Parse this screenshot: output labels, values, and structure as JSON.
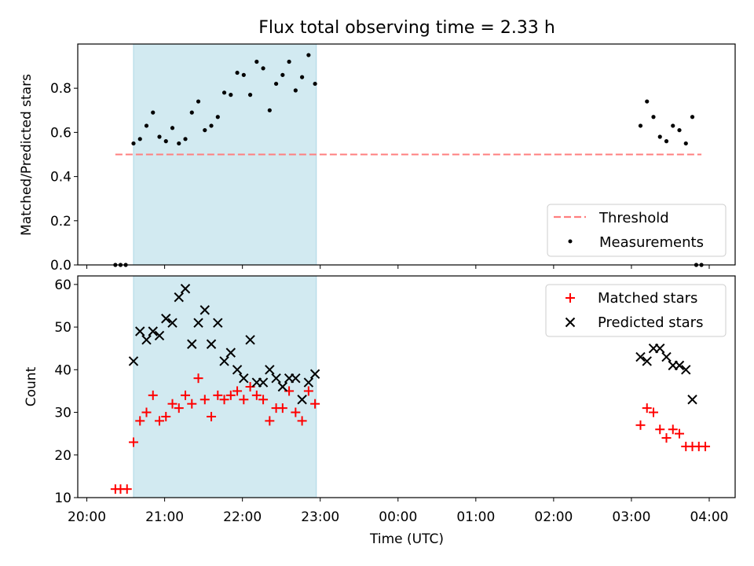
{
  "colors": {
    "shade": "#add8e6",
    "threshold": "#ff7f7f",
    "measurement": "#000000",
    "matched": "#ff0000",
    "predicted": "#000000"
  },
  "chart_data": [
    {
      "type": "scatter",
      "title": "Flux total observing time = 2.33 h",
      "xlabel": "",
      "ylabel": "Matched/Predicted stars",
      "xlim": [
        "19:53",
        "04:20"
      ],
      "ylim": [
        0,
        1.0
      ],
      "yticks": [
        "0.0",
        "0.2",
        "0.4",
        "0.6",
        "0.8"
      ],
      "shaded_span": [
        "20:36",
        "22:57"
      ],
      "legend_position": "lower-right",
      "legend": [
        {
          "label": "Threshold",
          "style": "dashed-line"
        },
        {
          "label": "Measurements",
          "style": "dot"
        }
      ],
      "threshold": {
        "y": 0.5,
        "x_start": "20:22",
        "x_end": "03:54"
      },
      "series": [
        {
          "name": "Measurements",
          "marker": "dot",
          "points": [
            [
              "20:22",
              0.0
            ],
            [
              "20:26",
              0.0
            ],
            [
              "20:30",
              0.0
            ],
            [
              "20:36",
              0.55
            ],
            [
              "20:41",
              0.57
            ],
            [
              "20:46",
              0.63
            ],
            [
              "20:51",
              0.69
            ],
            [
              "20:56",
              0.58
            ],
            [
              "21:01",
              0.56
            ],
            [
              "21:06",
              0.62
            ],
            [
              "21:11",
              0.55
            ],
            [
              "21:16",
              0.57
            ],
            [
              "21:21",
              0.69
            ],
            [
              "21:26",
              0.74
            ],
            [
              "21:31",
              0.61
            ],
            [
              "21:36",
              0.63
            ],
            [
              "21:41",
              0.67
            ],
            [
              "21:46",
              0.78
            ],
            [
              "21:51",
              0.77
            ],
            [
              "21:56",
              0.87
            ],
            [
              "22:01",
              0.86
            ],
            [
              "22:06",
              0.77
            ],
            [
              "22:11",
              0.92
            ],
            [
              "22:16",
              0.89
            ],
            [
              "22:21",
              0.7
            ],
            [
              "22:26",
              0.82
            ],
            [
              "22:31",
              0.86
            ],
            [
              "22:36",
              0.92
            ],
            [
              "22:41",
              0.79
            ],
            [
              "22:46",
              0.85
            ],
            [
              "22:51",
              0.95
            ],
            [
              "22:56",
              0.82
            ],
            [
              "03:07",
              0.63
            ],
            [
              "03:12",
              0.74
            ],
            [
              "03:17",
              0.67
            ],
            [
              "03:22",
              0.58
            ],
            [
              "03:27",
              0.56
            ],
            [
              "03:32",
              0.63
            ],
            [
              "03:37",
              0.61
            ],
            [
              "03:42",
              0.55
            ],
            [
              "03:47",
              0.67
            ],
            [
              "03:50",
              0.0
            ],
            [
              "03:54",
              0.0
            ]
          ]
        }
      ]
    },
    {
      "type": "scatter",
      "title": "",
      "xlabel": "Time (UTC)",
      "ylabel": "Count",
      "xlim": [
        "19:53",
        "04:20"
      ],
      "ylim": [
        10,
        62
      ],
      "yticks": [
        "10",
        "20",
        "30",
        "40",
        "50",
        "60"
      ],
      "xticks": [
        "20:00",
        "21:00",
        "22:00",
        "23:00",
        "00:00",
        "01:00",
        "02:00",
        "03:00",
        "04:00"
      ],
      "shaded_span": [
        "20:36",
        "22:57"
      ],
      "legend_position": "upper-right",
      "legend": [
        {
          "label": "Matched stars",
          "style": "plus"
        },
        {
          "label": "Predicted stars",
          "style": "cross"
        }
      ],
      "series": [
        {
          "name": "Matched stars",
          "marker": "plus",
          "points": [
            [
              "20:22",
              12
            ],
            [
              "20:26",
              12
            ],
            [
              "20:31",
              12
            ],
            [
              "20:36",
              23
            ],
            [
              "20:41",
              28
            ],
            [
              "20:46",
              30
            ],
            [
              "20:51",
              34
            ],
            [
              "20:56",
              28
            ],
            [
              "21:01",
              29
            ],
            [
              "21:06",
              32
            ],
            [
              "21:11",
              31
            ],
            [
              "21:16",
              34
            ],
            [
              "21:21",
              32
            ],
            [
              "21:26",
              38
            ],
            [
              "21:31",
              33
            ],
            [
              "21:36",
              29
            ],
            [
              "21:41",
              34
            ],
            [
              "21:46",
              33
            ],
            [
              "21:51",
              34
            ],
            [
              "21:56",
              35
            ],
            [
              "22:01",
              33
            ],
            [
              "22:06",
              36
            ],
            [
              "22:11",
              34
            ],
            [
              "22:16",
              33
            ],
            [
              "22:21",
              28
            ],
            [
              "22:26",
              31
            ],
            [
              "22:31",
              31
            ],
            [
              "22:36",
              35
            ],
            [
              "22:41",
              30
            ],
            [
              "22:46",
              28
            ],
            [
              "22:51",
              35
            ],
            [
              "22:56",
              32
            ],
            [
              "03:07",
              27
            ],
            [
              "03:12",
              31
            ],
            [
              "03:17",
              30
            ],
            [
              "03:22",
              26
            ],
            [
              "03:27",
              24
            ],
            [
              "03:32",
              26
            ],
            [
              "03:37",
              25
            ],
            [
              "03:42",
              22
            ],
            [
              "03:47",
              22
            ],
            [
              "03:52",
              22
            ],
            [
              "03:57",
              22
            ]
          ]
        },
        {
          "name": "Predicted stars",
          "marker": "cross",
          "points": [
            [
              "20:36",
              42
            ],
            [
              "20:41",
              49
            ],
            [
              "20:46",
              47
            ],
            [
              "20:51",
              49
            ],
            [
              "20:56",
              48
            ],
            [
              "21:01",
              52
            ],
            [
              "21:06",
              51
            ],
            [
              "21:11",
              57
            ],
            [
              "21:16",
              59
            ],
            [
              "21:21",
              46
            ],
            [
              "21:26",
              51
            ],
            [
              "21:31",
              54
            ],
            [
              "21:36",
              46
            ],
            [
              "21:41",
              51
            ],
            [
              "21:46",
              42
            ],
            [
              "21:51",
              44
            ],
            [
              "21:56",
              40
            ],
            [
              "22:01",
              38
            ],
            [
              "22:06",
              47
            ],
            [
              "22:11",
              37
            ],
            [
              "22:16",
              37
            ],
            [
              "22:21",
              40
            ],
            [
              "22:26",
              38
            ],
            [
              "22:31",
              36
            ],
            [
              "22:36",
              38
            ],
            [
              "22:41",
              38
            ],
            [
              "22:46",
              33
            ],
            [
              "22:51",
              37
            ],
            [
              "22:56",
              39
            ],
            [
              "03:07",
              43
            ],
            [
              "03:12",
              42
            ],
            [
              "03:17",
              45
            ],
            [
              "03:22",
              45
            ],
            [
              "03:27",
              43
            ],
            [
              "03:32",
              41
            ],
            [
              "03:37",
              41
            ],
            [
              "03:42",
              40
            ],
            [
              "03:47",
              33
            ]
          ]
        }
      ]
    }
  ]
}
